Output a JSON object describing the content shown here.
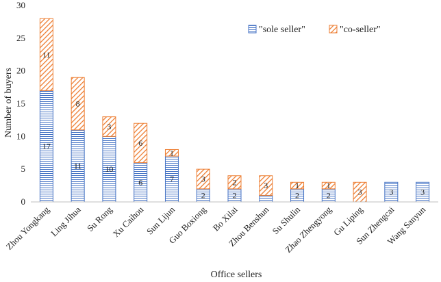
{
  "chart_data": {
    "type": "bar",
    "stacked": true,
    "title": "",
    "xlabel": "Office sellers",
    "ylabel": "Number of buyers",
    "ylim": [
      0,
      30
    ],
    "yticks": [
      0,
      5,
      10,
      15,
      20,
      25,
      30
    ],
    "grid": false,
    "legend_position": "top-right",
    "categories": [
      "Zhou Yongkang",
      "Ling Jihua",
      "Su Rong",
      "Xu Caihou",
      "Sun Lijun",
      "Guo Boxiong",
      "Bo Xilai",
      "Zhou Benshun",
      "Su Shulin",
      "Zhao Zhengyong",
      "Gu Liping",
      "Sun Zhengcai",
      "Wang Sanyun"
    ],
    "series": [
      {
        "name": "\"sole seller\"",
        "pattern": "horizontal-lines",
        "color": "#4472c4",
        "values": [
          17,
          11,
          10,
          6,
          7,
          2,
          2,
          1,
          2,
          2,
          0,
          3,
          3
        ],
        "labels": [
          "17",
          "11",
          "10",
          "6",
          "7",
          "2",
          "2",
          "",
          "2",
          "2",
          "",
          "3",
          "3"
        ]
      },
      {
        "name": "\"co-seller\"",
        "pattern": "diagonal-lines",
        "color": "#ed7d31",
        "values": [
          11,
          8,
          3,
          6,
          1,
          3,
          2,
          3,
          1,
          1,
          3,
          0,
          0
        ],
        "labels": [
          "11",
          "8",
          "3",
          "6",
          "1",
          "3",
          "2",
          "3",
          "1",
          "1",
          "3",
          "",
          ""
        ]
      }
    ]
  }
}
